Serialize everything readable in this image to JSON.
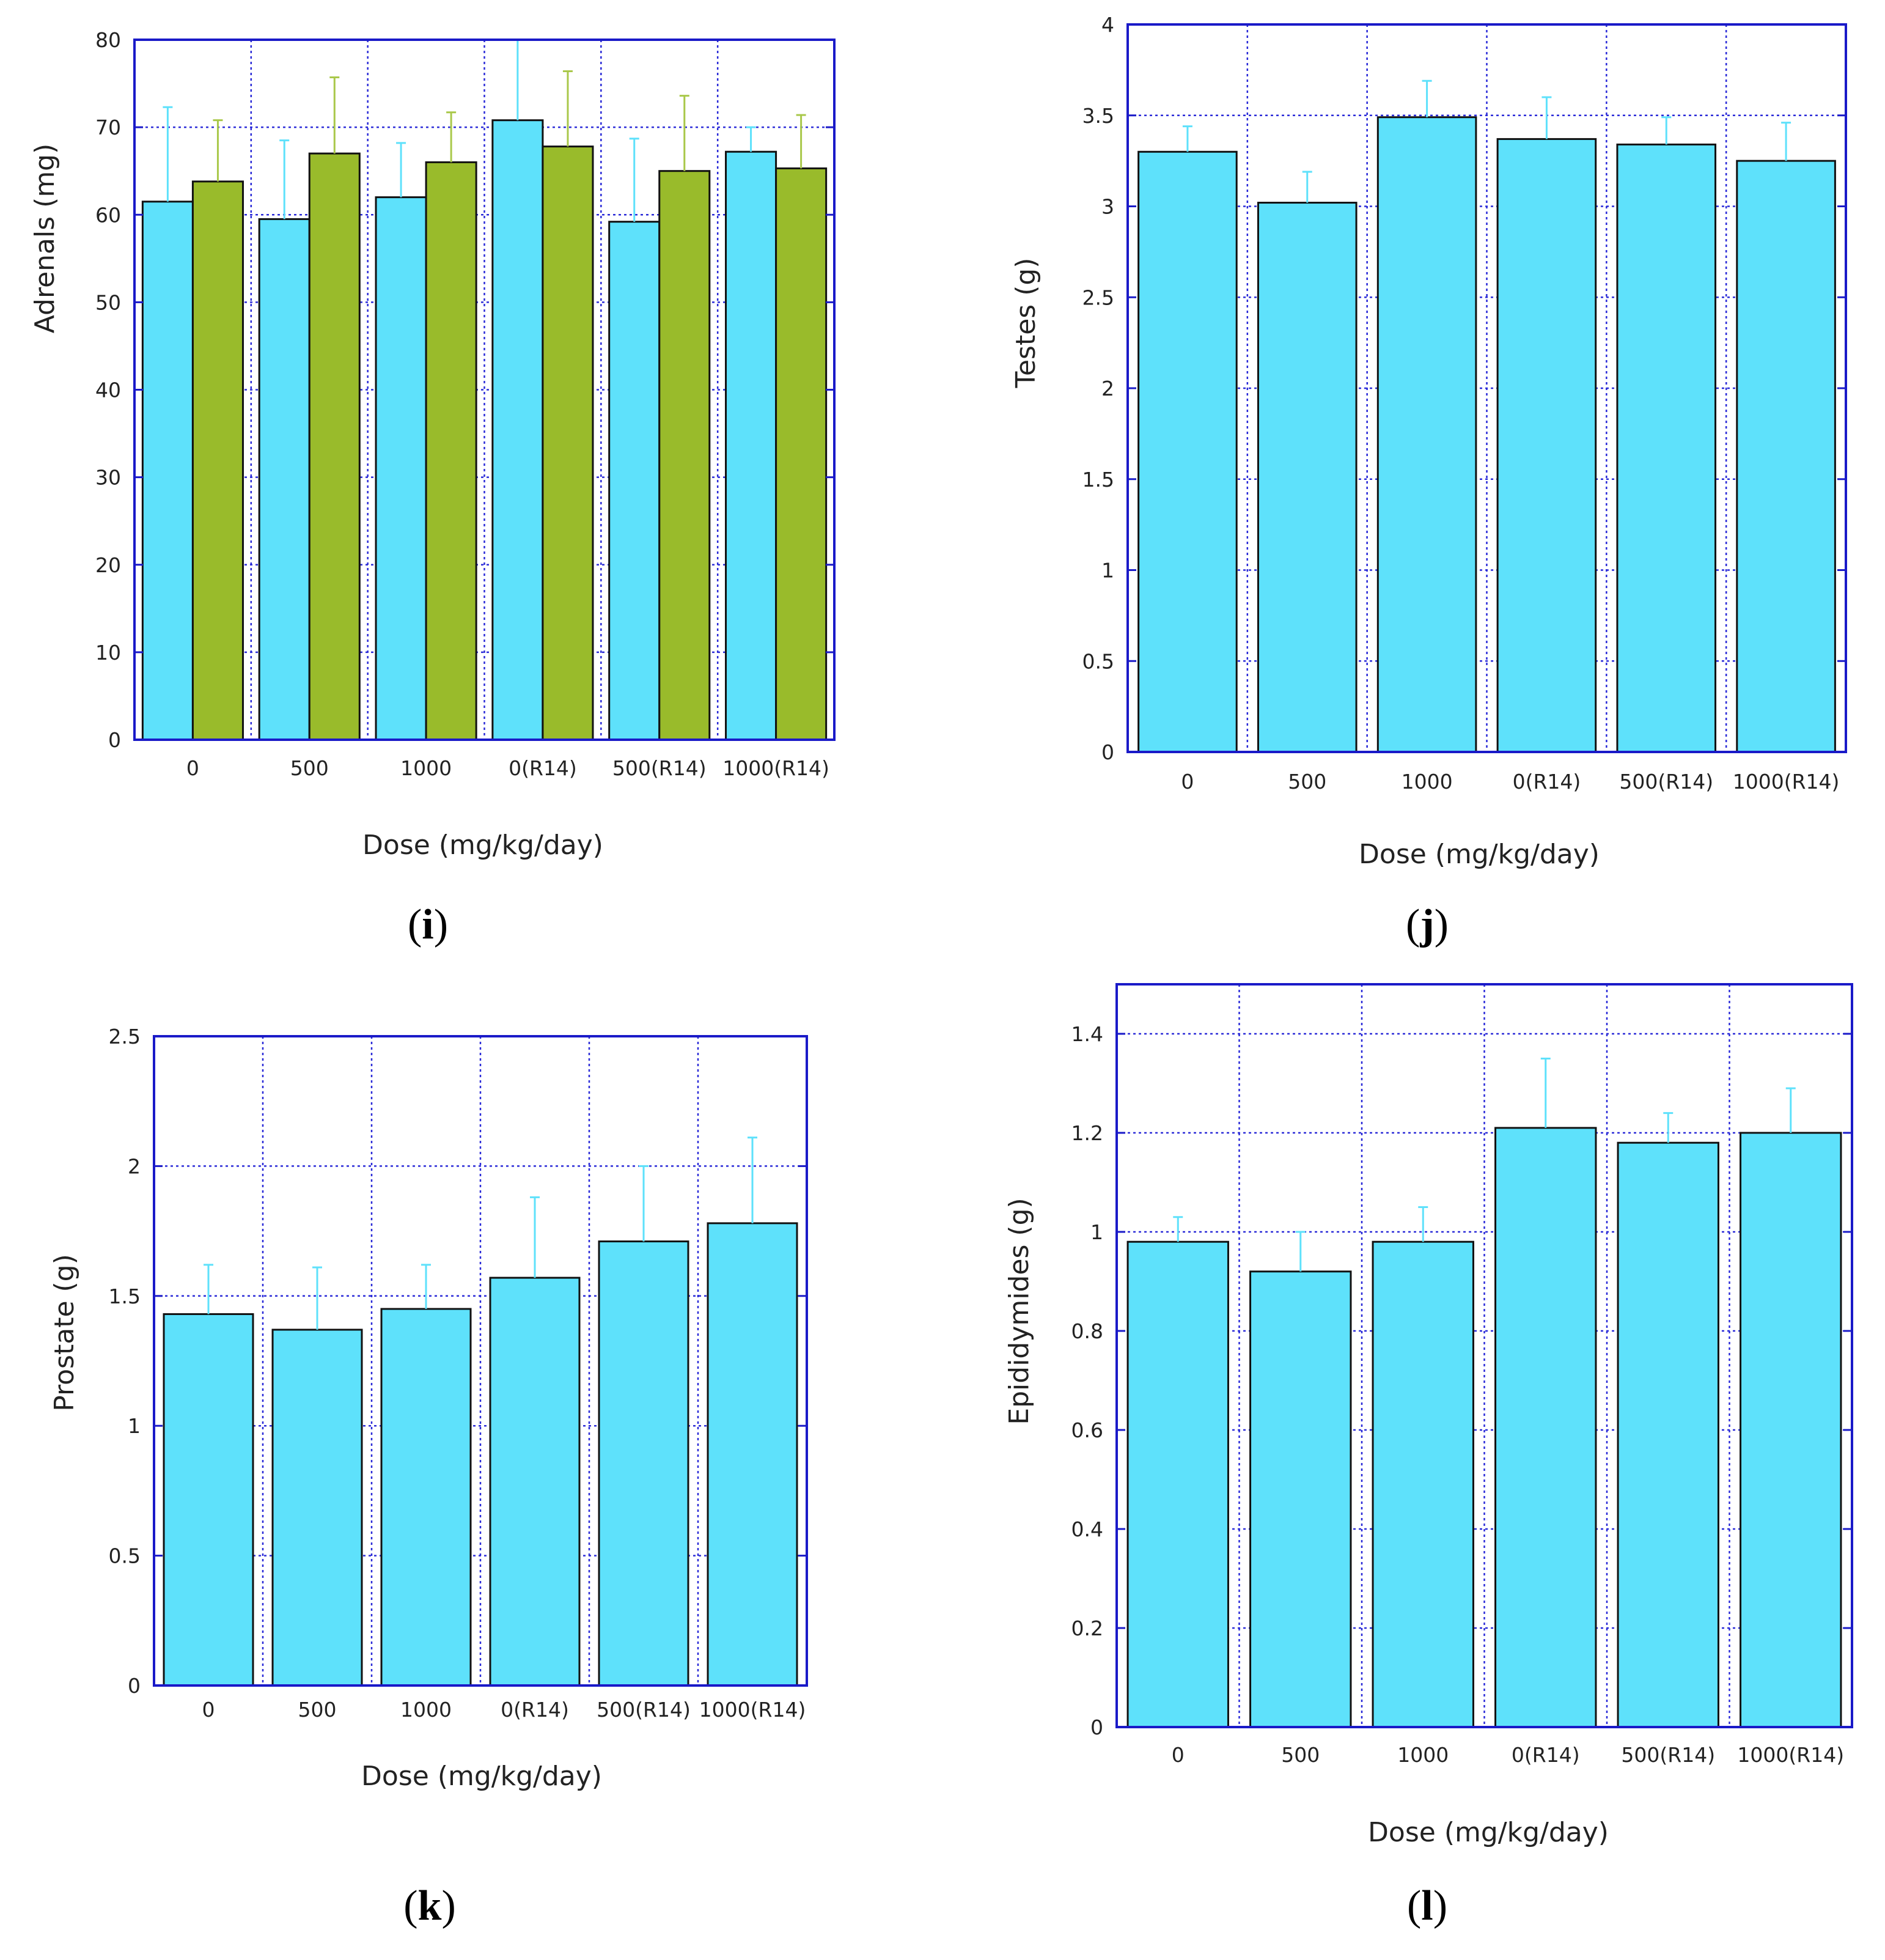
{
  "colors": {
    "bar": "#5ee1fb",
    "bar_alt": "#99bb2b",
    "error_bar": "#5ee1fb",
    "error_bar_alt": "#a9c84a",
    "frame": "#1a1ac8",
    "grid": "#2b2bd8",
    "bar_outline": "#111111"
  },
  "chart_data": [
    {
      "id": "i",
      "type": "bar",
      "panel_label": "i",
      "xlabel": "Dose (mg/kg/day)",
      "ylabel": "Adrenals (mg)",
      "ylim": [
        0,
        80
      ],
      "yticks": [
        "0",
        "10",
        "20",
        "30",
        "40",
        "50",
        "60",
        "70",
        "80"
      ],
      "categories": [
        "0",
        "500",
        "1000",
        "0(R14)",
        "500(R14)",
        "1000(R14)"
      ],
      "grid": true,
      "series": [
        {
          "name": "series-1",
          "color": "#5ee1fb",
          "values": [
            61.5,
            59.5,
            62.0,
            70.8,
            59.2,
            67.2
          ],
          "errors": [
            10.8,
            9.0,
            6.2,
            9.2,
            9.5,
            2.8
          ]
        },
        {
          "name": "series-2",
          "color": "#99bb2b",
          "values": [
            63.8,
            67.0,
            66.0,
            67.8,
            65.0,
            65.3
          ],
          "errors": [
            7.0,
            8.7,
            5.7,
            8.6,
            8.6,
            6.1
          ]
        }
      ]
    },
    {
      "id": "j",
      "type": "bar",
      "panel_label": "j",
      "xlabel": "Dose (mg/kg/day)",
      "ylabel": "Testes (g)",
      "ylim": [
        0,
        4
      ],
      "yticks": [
        "0",
        "0.5",
        "1",
        "1.5",
        "2",
        "2.5",
        "3",
        "3.5",
        "4"
      ],
      "categories": [
        "0",
        "500",
        "1000",
        "0(R14)",
        "500(R14)",
        "1000(R14)"
      ],
      "grid": true,
      "series": [
        {
          "name": "series-1",
          "color": "#5ee1fb",
          "values": [
            3.3,
            3.02,
            3.49,
            3.37,
            3.34,
            3.25
          ],
          "errors": [
            0.14,
            0.17,
            0.2,
            0.23,
            0.15,
            0.21
          ]
        }
      ]
    },
    {
      "id": "k",
      "type": "bar",
      "panel_label": "k",
      "xlabel": "Dose (mg/kg/day)",
      "ylabel": "Prostate (g)",
      "ylim": [
        0,
        2.5
      ],
      "yticks": [
        "0",
        "0.5",
        "1",
        "1.5",
        "2",
        "2.5"
      ],
      "categories": [
        "0",
        "500",
        "1000",
        "0(R14)",
        "500(R14)",
        "1000(R14)"
      ],
      "grid": true,
      "series": [
        {
          "name": "series-1",
          "color": "#5ee1fb",
          "values": [
            1.43,
            1.37,
            1.45,
            1.57,
            1.71,
            1.78
          ],
          "errors": [
            0.19,
            0.24,
            0.17,
            0.31,
            0.29,
            0.33
          ]
        }
      ]
    },
    {
      "id": "l",
      "type": "bar",
      "panel_label": "l",
      "xlabel": "Dose (mg/kg/day)",
      "ylabel": "Epididymides (g)",
      "ylim": [
        0,
        1.5
      ],
      "yticks": [
        "0",
        "0.2",
        "0.4",
        "0.6",
        "0.8",
        "1",
        "1.2",
        "1.4"
      ],
      "categories": [
        "0",
        "500",
        "1000",
        "0(R14)",
        "500(R14)",
        "1000(R14)"
      ],
      "grid": true,
      "series": [
        {
          "name": "series-1",
          "color": "#5ee1fb",
          "values": [
            0.98,
            0.92,
            0.98,
            1.21,
            1.18,
            1.2
          ],
          "errors": [
            0.05,
            0.08,
            0.07,
            0.14,
            0.06,
            0.09
          ]
        }
      ]
    }
  ]
}
